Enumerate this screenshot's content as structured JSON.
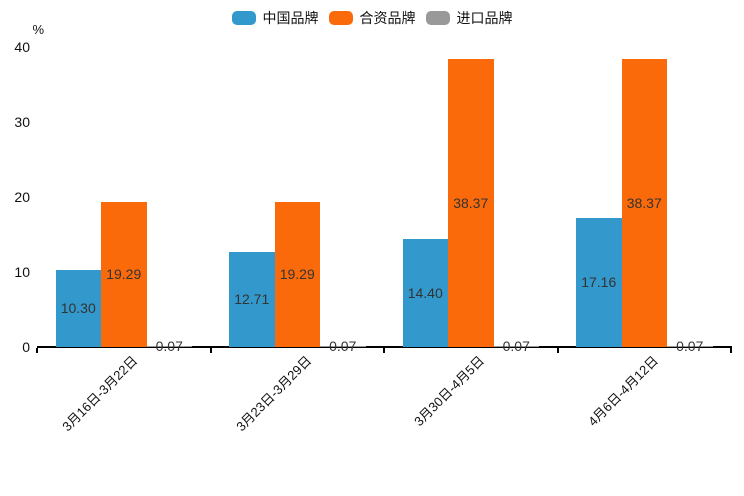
{
  "chart_data": {
    "type": "bar",
    "title": "",
    "unit_label": "%",
    "categories": [
      "3月16日-3月22日",
      "3月23日-3月29日",
      "3月30日-4月5日",
      "4月6日-4月12日"
    ],
    "series": [
      {
        "name": "中国品牌",
        "color": "#3398cc",
        "values": [
          10.3,
          12.71,
          14.4,
          17.16
        ],
        "value_labels": [
          "10.30",
          "12.71",
          "14.40",
          "17.16"
        ]
      },
      {
        "name": "合资品牌",
        "color": "#fb6a0a",
        "values": [
          19.29,
          19.29,
          38.37,
          38.37
        ],
        "value_labels": [
          "19.29",
          "19.29",
          "38.37",
          "38.37"
        ]
      },
      {
        "name": "进口品牌",
        "color": "#999999",
        "values": [
          0.07,
          0.07,
          0.07,
          0.07
        ],
        "value_labels": [
          "0.07",
          "0.07",
          "0.07",
          "0.07"
        ]
      }
    ],
    "ylim": [
      0,
      40
    ],
    "yticks": [
      "0",
      "10",
      "20",
      "30",
      "40"
    ],
    "grid": false,
    "legend_position": "top-center",
    "value_label_color": "#333333",
    "axis_color": "#000000",
    "background_color": "#ffffff",
    "xlabel": "",
    "ylabel": "%"
  }
}
